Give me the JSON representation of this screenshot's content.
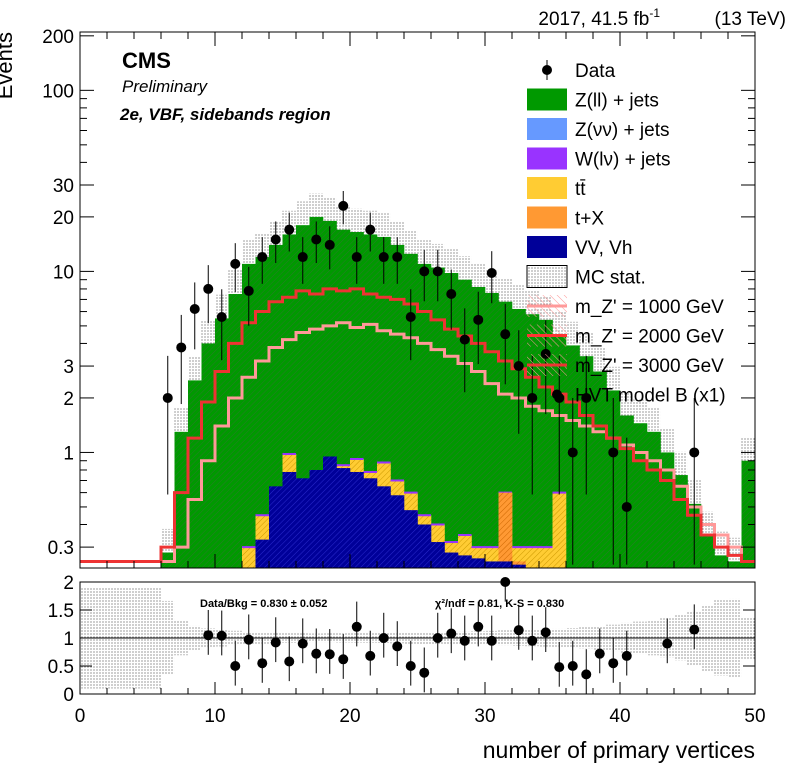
{
  "header": {
    "lumi": "2017, 41.5 fb",
    "lumi_exp": "-1",
    "energy": "(13 TeV)"
  },
  "labels": {
    "cms": "CMS",
    "preliminary": "Preliminary",
    "region": "2e, VBF, sidebands region"
  },
  "legend": [
    {
      "key": "data",
      "label": "Data",
      "color": "#000000"
    },
    {
      "key": "zll",
      "label": "Z(ll) + jets",
      "color": "#009900"
    },
    {
      "key": "znn",
      "label": "Z(νν) + jets",
      "color": "#6699ff"
    },
    {
      "key": "wln",
      "label": "W(lν) + jets",
      "color": "#9933ff"
    },
    {
      "key": "tt",
      "label": "tt̄",
      "color": "#ffcc33"
    },
    {
      "key": "tx",
      "label": "t+X",
      "color": "#ff9933"
    },
    {
      "key": "vv",
      "label": "VV, Vh",
      "color": "#000099"
    },
    {
      "key": "mcstat",
      "label": "MC stat.",
      "color": "#cccccc"
    },
    {
      "key": "sig1000",
      "label": "m_Z' = 1000 GeV",
      "color": "#ff9999"
    },
    {
      "key": "sig2000",
      "label": "m_Z' = 2000 GeV",
      "color": "#ff3333"
    },
    {
      "key": "sig3000",
      "label": "m_Z' = 3000 GeV",
      "color": "#ee3333"
    },
    {
      "key": "model",
      "label": "HVT model B (x1)",
      "color": "#000000"
    }
  ],
  "ratio_text": {
    "databkg": "Data/Bkg = 0.830 ± 0.052",
    "chi2": "χ²/ndf = 0.81,   K-S = 0.830"
  },
  "chart_data": {
    "type": "bar",
    "title": "2017, 41.5 fb-1 (13 TeV)",
    "xlabel": "number of primary vertices",
    "ylabel": "Events",
    "xlim": [
      0,
      50
    ],
    "ylim": [
      0.23,
      210
    ],
    "yscale": "log",
    "yticks": [
      0.3,
      1,
      2,
      3,
      10,
      20,
      30,
      100,
      200
    ],
    "xticks": [
      0,
      10,
      20,
      30,
      40,
      50
    ],
    "bin_edges_start": 0,
    "bin_width": 1,
    "series": [
      {
        "name": "Z(ll) + jets",
        "stack_top_to": [
          0,
          0,
          0,
          0,
          0,
          0,
          0.28,
          1.3,
          2.5,
          4.0,
          5.5,
          7.5,
          11,
          12,
          14,
          16,
          18,
          20,
          19,
          17,
          16.5,
          16,
          15.5,
          14,
          12.5,
          11,
          10.5,
          9.8,
          9.0,
          8.2,
          7.6,
          6.8,
          6.2,
          5.8,
          5.4,
          4.5,
          3.9,
          3.4,
          2.8,
          2.2,
          1.6,
          1.45,
          1.3,
          1.0,
          0.75,
          0.52,
          0.35,
          0.27,
          0.25,
          0.9
        ]
      },
      {
        "name": "tt̄",
        "stack_top_to": [
          0,
          0,
          0,
          0,
          0,
          0,
          0,
          0,
          0,
          0,
          0,
          0,
          0,
          0,
          0,
          0,
          0,
          0,
          0,
          0,
          0,
          0,
          0,
          0,
          0,
          0,
          0,
          0,
          0,
          0,
          0,
          0,
          0,
          0,
          0,
          0,
          0,
          0,
          0,
          0,
          0,
          0,
          0,
          0,
          0,
          0,
          0,
          0,
          0,
          0
        ]
      },
      {
        "name": "VV, Vh",
        "values": [
          0,
          0,
          0,
          0,
          0,
          0,
          0,
          0,
          0,
          0,
          0,
          0,
          0,
          0.33,
          0.65,
          0.78,
          0.72,
          0.8,
          0.95,
          0.82,
          0.78,
          0.72,
          0.65,
          0.58,
          0.48,
          0.4,
          0.32,
          0.28,
          0.27,
          0.26,
          0.25,
          0.25,
          0.24,
          0,
          0,
          0,
          0,
          0,
          0,
          0,
          0,
          0,
          0,
          0,
          0,
          0,
          0,
          0,
          0,
          0
        ]
      }
    ],
    "bkg_total": [
      0,
      0,
      0,
      0,
      0,
      0,
      0.28,
      1.3,
      2.5,
      4.0,
      5.5,
      7.5,
      11,
      12,
      14,
      16,
      18,
      20,
      19,
      17,
      16.5,
      16,
      15.5,
      14,
      12.5,
      11,
      10.5,
      9.8,
      9.0,
      8.2,
      7.6,
      6.8,
      6.2,
      5.8,
      5.4,
      4.5,
      3.9,
      3.4,
      2.8,
      2.2,
      1.6,
      1.45,
      1.3,
      1.0,
      0.75,
      0.52,
      0.35,
      0.27,
      0.25,
      0.9
    ],
    "yellow_top": [
      0,
      0,
      0,
      0,
      0,
      0,
      0,
      0,
      0,
      0,
      0,
      0,
      0.3,
      0.45,
      0.6,
      0.98,
      0.62,
      0.68,
      0.72,
      0.85,
      0.92,
      0.78,
      0.88,
      0.7,
      0.6,
      0.45,
      0.4,
      0.32,
      0.35,
      0.3,
      0.3,
      0.6,
      0.3,
      0.3,
      0.3,
      0.6,
      0,
      0,
      0,
      0,
      0,
      0,
      0,
      0,
      0,
      0,
      0,
      0,
      0,
      0
    ],
    "vv_top": [
      0,
      0,
      0,
      0,
      0,
      0,
      0,
      0,
      0,
      0,
      0,
      0,
      0,
      0.33,
      0.65,
      0.78,
      0.72,
      0.8,
      0.95,
      0.82,
      0.78,
      0.72,
      0.65,
      0.58,
      0.48,
      0.4,
      0.32,
      0.28,
      0.27,
      0.26,
      0.25,
      0.25,
      0.24,
      0,
      0,
      0,
      0,
      0,
      0,
      0,
      0,
      0,
      0,
      0,
      0,
      0,
      0,
      0,
      0,
      0
    ],
    "orange_top": [
      0,
      0,
      0,
      0,
      0,
      0,
      0,
      0,
      0,
      0,
      0,
      0,
      0,
      0,
      0,
      0,
      0,
      0,
      0,
      0,
      0,
      0,
      0,
      0,
      0,
      0,
      0,
      0,
      0,
      0,
      0,
      0.6,
      0.25,
      0,
      0,
      0,
      0,
      0,
      0,
      0,
      0,
      0,
      0,
      0,
      0,
      0,
      0,
      0,
      0,
      0
    ],
    "sig1000": [
      0.25,
      0.25,
      0.25,
      0.25,
      0.25,
      0.25,
      0.25,
      0.3,
      0.55,
      0.9,
      1.4,
      2.0,
      2.6,
      3.2,
      3.8,
      4.2,
      4.6,
      4.8,
      5.0,
      5.2,
      4.9,
      5.1,
      4.7,
      4.5,
      4.3,
      4.0,
      3.7,
      3.4,
      3.1,
      2.8,
      2.4,
      2.1,
      2.0,
      1.8,
      1.7,
      1.6,
      1.5,
      1.4,
      1.3,
      1.2,
      1.1,
      1.0,
      0.9,
      0.8,
      0.65,
      0.5,
      0.4,
      0.35,
      0.3,
      0.25
    ],
    "sig2000": [
      0.25,
      0.25,
      0.25,
      0.25,
      0.25,
      0.25,
      0.3,
      0.6,
      1.2,
      1.9,
      2.8,
      4.0,
      5.2,
      6.0,
      6.8,
      7.2,
      7.8,
      7.5,
      8.0,
      7.8,
      8.0,
      7.5,
      7.2,
      7.0,
      6.6,
      6.0,
      5.4,
      4.8,
      4.4,
      4.0,
      3.6,
      3.2,
      2.9,
      2.6,
      2.3,
      2.1,
      1.9,
      1.6,
      1.4,
      1.2,
      1.05,
      0.9,
      0.8,
      0.7,
      0.55,
      0.45,
      0.35,
      0.3,
      0.27,
      0.25
    ],
    "data": [
      null,
      null,
      null,
      null,
      null,
      null,
      2.0,
      3.8,
      6.2,
      8.0,
      5.6,
      11,
      7.8,
      12,
      15,
      17,
      12,
      15,
      14,
      23,
      12,
      17,
      12,
      12,
      5.6,
      10,
      10,
      7.5,
      4.2,
      5.4,
      9.8,
      4.5,
      3.0,
      2.0,
      3.5,
      2.0,
      1.0,
      2.0,
      null,
      1.0,
      0.5,
      null,
      null,
      null,
      null,
      1.0,
      null,
      null,
      null,
      null
    ],
    "ratio": [
      null,
      null,
      null,
      null,
      null,
      null,
      null,
      null,
      null,
      1.05,
      1.04,
      0.5,
      0.97,
      0.55,
      0.92,
      0.58,
      0.9,
      0.72,
      0.71,
      0.62,
      1.2,
      0.68,
      1.0,
      0.85,
      0.5,
      0.38,
      1.0,
      1.08,
      0.95,
      1.2,
      0.95,
      2.0,
      1.14,
      0.95,
      1.1,
      0.48,
      0.5,
      0.35,
      0.72,
      0.55,
      0.68,
      null,
      null,
      0.9,
      null,
      1.15,
      null,
      null,
      null,
      null
    ],
    "ratio_ylim": [
      0,
      2
    ],
    "ratio_yticks": [
      0,
      0.5,
      1,
      1.5,
      2
    ]
  }
}
